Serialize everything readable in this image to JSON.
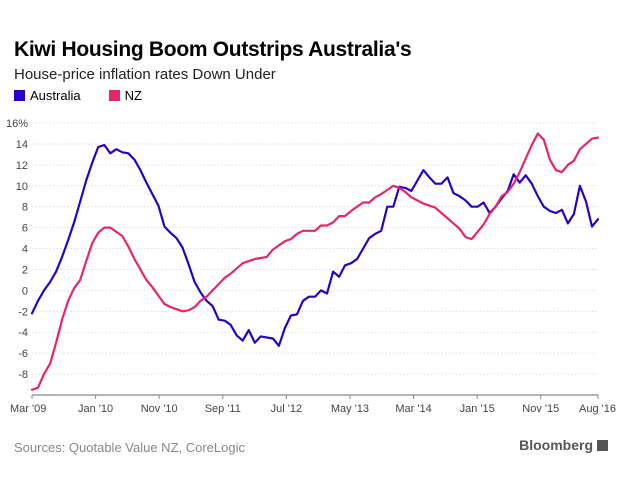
{
  "header": {
    "title": "Kiwi Housing Boom Outstrips Australia's",
    "subtitle": "House-price inflation rates Down Under"
  },
  "footer": {
    "source": "Sources: Quotable Value NZ, CoreLogic",
    "brand": "Bloomberg"
  },
  "chart_data": {
    "type": "line",
    "title": "Kiwi Housing Boom Outstrips Australia's",
    "subtitle": "House-price inflation rates Down Under",
    "xlabel": "",
    "ylabel": "",
    "x_range": [
      "2009-03",
      "2016-08"
    ],
    "ylim": [
      -10,
      16
    ],
    "y_ticks": [
      -10,
      -8,
      -6,
      -4,
      -2,
      0,
      2,
      4,
      6,
      8,
      10,
      12,
      14,
      16
    ],
    "y_tick_labels": [
      "",
      "-8",
      "-6",
      "-4",
      "-2",
      "0",
      "2",
      "4",
      "6",
      "8",
      "10",
      "12",
      "14",
      "16%"
    ],
    "x_tick_labels": [
      {
        "label": "Mar '09",
        "date": "2009-03"
      },
      {
        "label": "Jan '10",
        "date": "2010-01"
      },
      {
        "label": "Nov '10",
        "date": "2010-11"
      },
      {
        "label": "Sep '11",
        "date": "2011-09"
      },
      {
        "label": "Jul '12",
        "date": "2012-07"
      },
      {
        "label": "May '13",
        "date": "2013-05"
      },
      {
        "label": "Mar '14",
        "date": "2014-03"
      },
      {
        "label": "Jan '15",
        "date": "2015-01"
      },
      {
        "label": "Nov '15",
        "date": "2015-11"
      },
      {
        "label": "Aug '16",
        "date": "2016-08"
      }
    ],
    "grid": true,
    "legend_position": "top-left",
    "series": [
      {
        "name": "Australia",
        "color": "#2a00c8",
        "points": [
          [
            "2009-03",
            -2.2
          ],
          [
            "2009-04",
            -1.0
          ],
          [
            "2009-05",
            0.0
          ],
          [
            "2009-06",
            0.8
          ],
          [
            "2009-07",
            1.8
          ],
          [
            "2009-08",
            3.2
          ],
          [
            "2009-09",
            4.8
          ],
          [
            "2009-10",
            6.5
          ],
          [
            "2009-11",
            8.5
          ],
          [
            "2009-12",
            10.5
          ],
          [
            "2010-01",
            12.2
          ],
          [
            "2010-02",
            13.7
          ],
          [
            "2010-03",
            13.9
          ],
          [
            "2010-04",
            13.1
          ],
          [
            "2010-05",
            13.5
          ],
          [
            "2010-06",
            13.2
          ],
          [
            "2010-07",
            13.1
          ],
          [
            "2010-08",
            12.5
          ],
          [
            "2010-09",
            11.5
          ],
          [
            "2010-10",
            10.3
          ],
          [
            "2010-11",
            9.2
          ],
          [
            "2010-12",
            8.1
          ],
          [
            "2011-01",
            6.1
          ],
          [
            "2011-02",
            5.5
          ],
          [
            "2011-03",
            5.0
          ],
          [
            "2011-04",
            4.1
          ],
          [
            "2011-05",
            2.5
          ],
          [
            "2011-06",
            0.8
          ],
          [
            "2011-07",
            -0.2
          ],
          [
            "2011-08",
            -1.0
          ],
          [
            "2011-09",
            -1.5
          ],
          [
            "2011-10",
            -2.8
          ],
          [
            "2011-11",
            -2.9
          ],
          [
            "2011-12",
            -3.3
          ],
          [
            "2012-01",
            -4.3
          ],
          [
            "2012-02",
            -4.8
          ],
          [
            "2012-03",
            -3.8
          ],
          [
            "2012-04",
            -5.0
          ],
          [
            "2012-05",
            -4.4
          ],
          [
            "2012-06",
            -4.5
          ],
          [
            "2012-07",
            -4.6
          ],
          [
            "2012-08",
            -5.3
          ],
          [
            "2012-09",
            -3.6
          ],
          [
            "2012-10",
            -2.4
          ],
          [
            "2012-11",
            -2.3
          ],
          [
            "2012-12",
            -1.0
          ],
          [
            "2013-01",
            -0.6
          ],
          [
            "2013-02",
            -0.6
          ],
          [
            "2013-03",
            0.0
          ],
          [
            "2013-04",
            -0.3
          ],
          [
            "2013-05",
            1.8
          ],
          [
            "2013-06",
            1.3
          ],
          [
            "2013-07",
            2.4
          ],
          [
            "2013-08",
            2.6
          ],
          [
            "2013-09",
            3.0
          ],
          [
            "2013-10",
            4.0
          ],
          [
            "2013-11",
            5.0
          ],
          [
            "2013-12",
            5.4
          ],
          [
            "2014-01",
            5.7
          ],
          [
            "2014-02",
            8.0
          ],
          [
            "2014-03",
            8.0
          ],
          [
            "2014-04",
            9.9
          ],
          [
            "2014-05",
            9.8
          ],
          [
            "2014-06",
            9.5
          ],
          [
            "2014-07",
            10.5
          ],
          [
            "2014-08",
            11.5
          ],
          [
            "2014-09",
            10.8
          ],
          [
            "2014-10",
            10.2
          ],
          [
            "2014-11",
            10.2
          ],
          [
            "2014-12",
            10.8
          ],
          [
            "2015-01",
            9.3
          ],
          [
            "2015-02",
            9.0
          ],
          [
            "2015-03",
            8.6
          ],
          [
            "2015-04",
            8.0
          ],
          [
            "2015-05",
            8.0
          ],
          [
            "2015-06",
            8.4
          ],
          [
            "2015-07",
            7.4
          ],
          [
            "2015-08",
            8.0
          ],
          [
            "2015-09",
            8.8
          ],
          [
            "2015-10",
            9.5
          ],
          [
            "2015-11",
            11.1
          ],
          [
            "2015-12",
            10.3
          ],
          [
            "2016-01",
            11.0
          ],
          [
            "2016-02",
            10.2
          ],
          [
            "2016-03",
            9.0
          ],
          [
            "2016-04",
            8.0
          ],
          [
            "2016-05",
            7.6
          ],
          [
            "2016-06",
            7.4
          ],
          [
            "2016-07",
            7.7
          ],
          [
            "2016-08",
            6.4
          ],
          [
            "2016-09",
            7.3
          ],
          [
            "2016-10",
            10.0
          ],
          [
            "2016-11",
            8.5
          ],
          [
            "2016-12",
            6.1
          ],
          [
            "2017-01",
            6.8
          ]
        ]
      },
      {
        "name": "NZ",
        "color": "#e8246e",
        "points": [
          [
            "2009-03",
            -9.5
          ],
          [
            "2009-04",
            -9.3
          ],
          [
            "2009-05",
            -8.0
          ],
          [
            "2009-06",
            -7.0
          ],
          [
            "2009-07",
            -5.0
          ],
          [
            "2009-08",
            -2.8
          ],
          [
            "2009-09",
            -1.0
          ],
          [
            "2009-10",
            0.2
          ],
          [
            "2009-11",
            1.0
          ],
          [
            "2009-12",
            2.8
          ],
          [
            "2010-01",
            4.5
          ],
          [
            "2010-02",
            5.5
          ],
          [
            "2010-03",
            6.0
          ],
          [
            "2010-04",
            6.0
          ],
          [
            "2010-05",
            5.6
          ],
          [
            "2010-06",
            5.2
          ],
          [
            "2010-07",
            4.2
          ],
          [
            "2010-08",
            3.0
          ],
          [
            "2010-09",
            2.0
          ],
          [
            "2010-10",
            1.0
          ],
          [
            "2010-11",
            0.3
          ],
          [
            "2010-12",
            -0.5
          ],
          [
            "2011-01",
            -1.3
          ],
          [
            "2011-02",
            -1.6
          ],
          [
            "2011-03",
            -1.8
          ],
          [
            "2011-04",
            -2.0
          ],
          [
            "2011-05",
            -1.9
          ],
          [
            "2011-06",
            -1.6
          ],
          [
            "2011-07",
            -1.0
          ],
          [
            "2011-08",
            -0.6
          ],
          [
            "2011-09",
            0.0
          ],
          [
            "2011-10",
            0.6
          ],
          [
            "2011-11",
            1.2
          ],
          [
            "2011-12",
            1.6
          ],
          [
            "2012-01",
            2.1
          ],
          [
            "2012-02",
            2.6
          ],
          [
            "2012-03",
            2.8
          ],
          [
            "2012-04",
            3.0
          ],
          [
            "2012-05",
            3.1
          ],
          [
            "2012-06",
            3.2
          ],
          [
            "2012-07",
            3.9
          ],
          [
            "2012-08",
            4.3
          ],
          [
            "2012-09",
            4.7
          ],
          [
            "2012-10",
            4.9
          ],
          [
            "2012-11",
            5.4
          ],
          [
            "2012-12",
            5.7
          ],
          [
            "2013-01",
            5.7
          ],
          [
            "2013-02",
            5.7
          ],
          [
            "2013-03",
            6.2
          ],
          [
            "2013-04",
            6.2
          ],
          [
            "2013-05",
            6.5
          ],
          [
            "2013-06",
            7.1
          ],
          [
            "2013-07",
            7.1
          ],
          [
            "2013-08",
            7.6
          ],
          [
            "2013-09",
            8.0
          ],
          [
            "2013-10",
            8.4
          ],
          [
            "2013-11",
            8.4
          ],
          [
            "2013-12",
            8.9
          ],
          [
            "2014-01",
            9.2
          ],
          [
            "2014-02",
            9.6
          ],
          [
            "2014-03",
            10.0
          ],
          [
            "2014-04",
            9.8
          ],
          [
            "2014-05",
            9.4
          ],
          [
            "2014-06",
            8.9
          ],
          [
            "2014-07",
            8.6
          ],
          [
            "2014-08",
            8.3
          ],
          [
            "2014-09",
            8.1
          ],
          [
            "2014-10",
            7.9
          ],
          [
            "2014-11",
            7.4
          ],
          [
            "2014-12",
            6.9
          ],
          [
            "2015-01",
            6.4
          ],
          [
            "2015-02",
            5.9
          ],
          [
            "2015-03",
            5.1
          ],
          [
            "2015-04",
            4.9
          ],
          [
            "2015-05",
            5.6
          ],
          [
            "2015-06",
            6.3
          ],
          [
            "2015-07",
            7.3
          ],
          [
            "2015-08",
            8.0
          ],
          [
            "2015-09",
            9.0
          ],
          [
            "2015-10",
            9.4
          ],
          [
            "2015-11",
            10.2
          ],
          [
            "2015-12",
            11.3
          ],
          [
            "2016-01",
            12.6
          ],
          [
            "2016-02",
            13.9
          ],
          [
            "2016-03",
            15.0
          ],
          [
            "2016-04",
            14.4
          ],
          [
            "2016-05",
            12.5
          ],
          [
            "2016-06",
            11.5
          ],
          [
            "2016-07",
            11.3
          ],
          [
            "2016-08",
            12.0
          ],
          [
            "2016-09",
            12.4
          ],
          [
            "2016-10",
            13.5
          ],
          [
            "2016-11",
            14.0
          ],
          [
            "2016-12",
            14.5
          ],
          [
            "2017-01",
            14.6
          ]
        ]
      }
    ]
  }
}
